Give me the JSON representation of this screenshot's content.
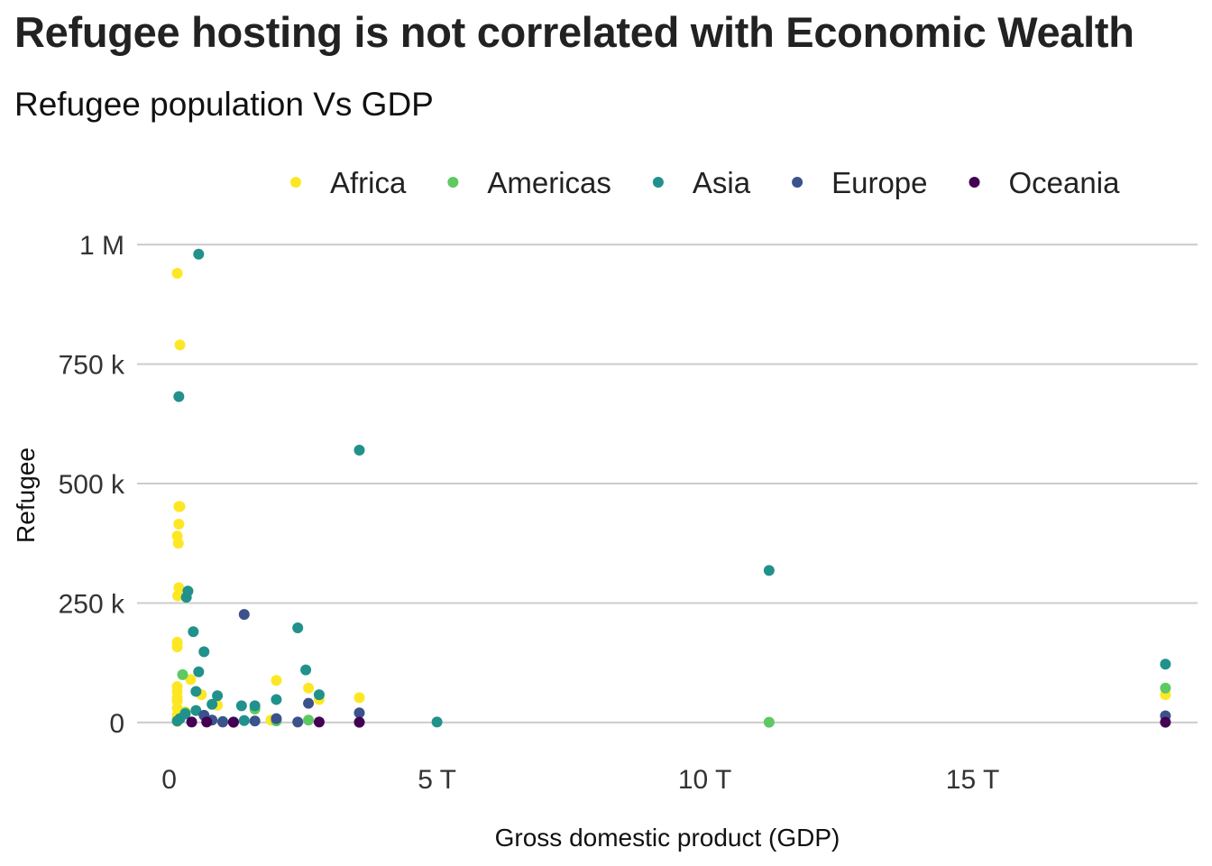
{
  "chart_data": {
    "type": "scatter",
    "title": "Refugee hosting is not correlated with Economic Wealth",
    "subtitle": "Refugee population Vs GDP",
    "xlabel": "Gross domestic product (GDP)",
    "ylabel": "Refugee",
    "xlim": [
      -0.6,
      19.2
    ],
    "ylim": [
      -55000,
      1040000
    ],
    "x_ticks": [
      0,
      5,
      10,
      15
    ],
    "x_tick_labels": [
      "0",
      "5 T",
      "10 T",
      "15 T"
    ],
    "y_ticks": [
      0,
      250000,
      500000,
      750000,
      1000000
    ],
    "y_tick_labels": [
      "0",
      "250 k",
      "500 k",
      "750 k",
      "1 M"
    ],
    "x_unit_note": "x values in trillions",
    "grid": "horizontal",
    "legend_position": "top",
    "series": [
      {
        "name": "Africa",
        "color": "#fde725",
        "points": [
          [
            0.15,
            940000
          ],
          [
            0.2,
            790000
          ],
          [
            0.18,
            452000
          ],
          [
            0.2,
            452000
          ],
          [
            0.18,
            415000
          ],
          [
            0.15,
            390000
          ],
          [
            0.17,
            375000
          ],
          [
            0.18,
            282000
          ],
          [
            0.16,
            265000
          ],
          [
            0.15,
            168000
          ],
          [
            0.15,
            158000
          ],
          [
            0.4,
            90000
          ],
          [
            0.15,
            75000
          ],
          [
            0.15,
            65000
          ],
          [
            0.6,
            58000
          ],
          [
            0.15,
            52000
          ],
          [
            0.15,
            45000
          ],
          [
            0.9,
            36000
          ],
          [
            0.15,
            30000
          ],
          [
            0.3,
            22000
          ],
          [
            0.15,
            15000
          ],
          [
            0.15,
            8000
          ],
          [
            0.15,
            2000
          ],
          [
            2.0,
            88000
          ],
          [
            2.6,
            72000
          ],
          [
            2.8,
            48000
          ],
          [
            3.55,
            52000
          ],
          [
            1.9,
            5000
          ],
          [
            18.6,
            58000
          ]
        ]
      },
      {
        "name": "Americas",
        "color": "#5ec962",
        "points": [
          [
            0.25,
            100000
          ],
          [
            0.3,
            20000
          ],
          [
            1.6,
            28000
          ],
          [
            2.0,
            3000
          ],
          [
            2.6,
            5000
          ],
          [
            11.2,
            500
          ],
          [
            18.6,
            72000
          ]
        ]
      },
      {
        "name": "Asia",
        "color": "#21918c",
        "points": [
          [
            0.55,
            980000
          ],
          [
            0.18,
            682000
          ],
          [
            3.55,
            570000
          ],
          [
            11.2,
            318000
          ],
          [
            0.35,
            275000
          ],
          [
            0.32,
            262000
          ],
          [
            2.4,
            198000
          ],
          [
            0.45,
            190000
          ],
          [
            0.65,
            148000
          ],
          [
            2.55,
            110000
          ],
          [
            0.55,
            106000
          ],
          [
            0.5,
            65000
          ],
          [
            0.9,
            56000
          ],
          [
            2.8,
            58000
          ],
          [
            2.0,
            48000
          ],
          [
            0.8,
            38000
          ],
          [
            1.35,
            35000
          ],
          [
            1.6,
            35000
          ],
          [
            0.5,
            25000
          ],
          [
            0.3,
            18000
          ],
          [
            0.2,
            8000
          ],
          [
            0.15,
            3000
          ],
          [
            1.0,
            2000
          ],
          [
            1.4,
            4000
          ],
          [
            5.0,
            1000
          ],
          [
            18.6,
            122000
          ]
        ]
      },
      {
        "name": "Europe",
        "color": "#3b528b",
        "points": [
          [
            1.4,
            226000
          ],
          [
            2.6,
            40000
          ],
          [
            3.55,
            20000
          ],
          [
            0.65,
            15000
          ],
          [
            0.8,
            5000
          ],
          [
            1.0,
            1000
          ],
          [
            1.2,
            1000
          ],
          [
            1.6,
            3000
          ],
          [
            2.0,
            8000
          ],
          [
            2.4,
            1000
          ],
          [
            18.6,
            14000
          ]
        ]
      },
      {
        "name": "Oceania",
        "color": "#440154",
        "points": [
          [
            0.42,
            1000
          ],
          [
            0.7,
            1000
          ],
          [
            1.2,
            500
          ],
          [
            2.8,
            1000
          ],
          [
            3.55,
            500
          ],
          [
            18.6,
            500
          ]
        ]
      }
    ]
  }
}
